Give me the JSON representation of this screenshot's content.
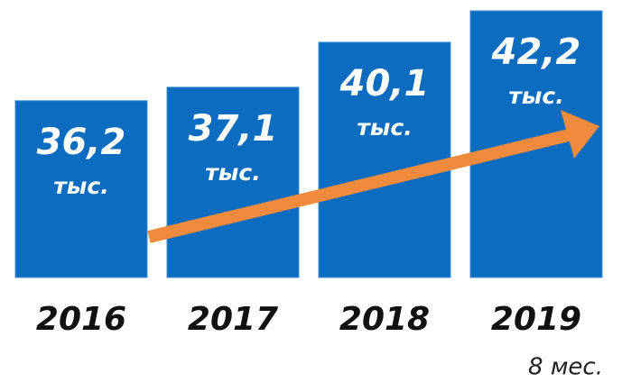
{
  "chart_data": {
    "type": "bar",
    "categories": [
      "2016",
      "2017",
      "2018",
      "2019"
    ],
    "values": [
      36.2,
      37.1,
      40.1,
      42.2
    ],
    "value_labels": [
      "36,2",
      "37,1",
      "40,1",
      "42,2"
    ],
    "unit_label": "тыс.",
    "annotation": "8 мес.",
    "color": "#0b6cc0",
    "ylim": [
      24.4,
      42.2
    ]
  }
}
